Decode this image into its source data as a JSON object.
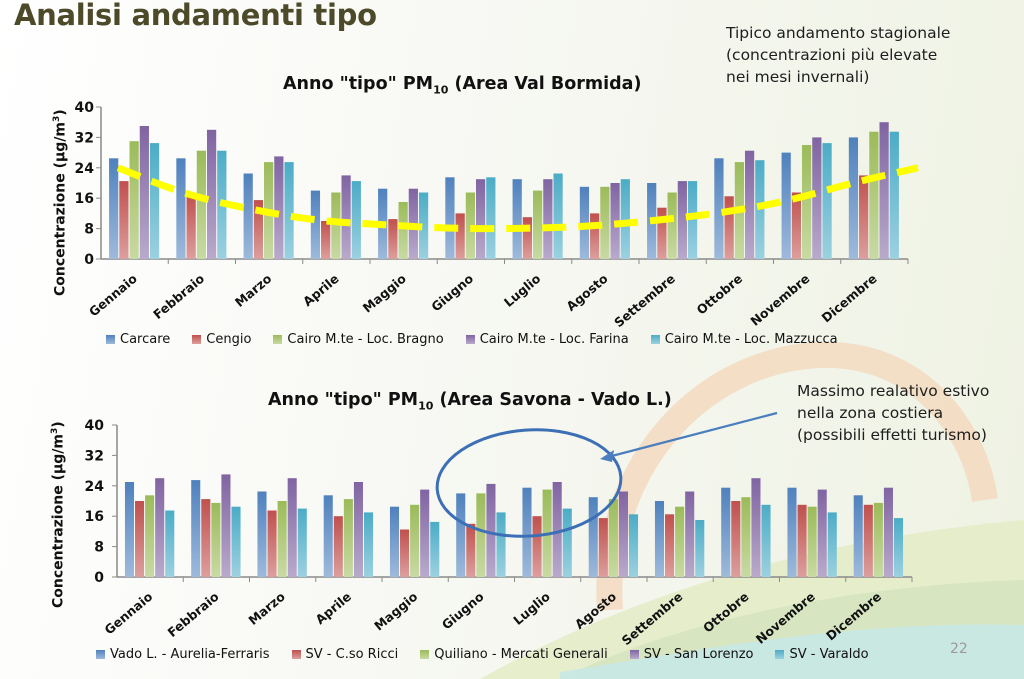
{
  "slide": {
    "title": "Analisi andamenti tipo",
    "page_number": "22",
    "note_top": [
      "Tipico andamento stagionale",
      "(concentrazioni più elevate",
      "nei mesi invernali)"
    ],
    "note_bottom": [
      "Massimo realativo estivo",
      "nella zona costiera",
      "(possibili effetti turismo)"
    ]
  },
  "chart_data": [
    {
      "type": "bar",
      "title_main": "Anno \"tipo\"  PM",
      "title_sub": "10",
      "title_tail": "  (Area Val Bormida)",
      "ylabel_main": "Concentrazione (µg/m",
      "ylabel_sup": "3",
      "ylabel_tail": ")",
      "ylim": [
        0,
        40
      ],
      "yticks": [
        0,
        8,
        16,
        24,
        32,
        40
      ],
      "grid": false,
      "legend_position": "bottom",
      "categories": [
        "Gennaio",
        "Febbraio",
        "Marzo",
        "Aprile",
        "Maggio",
        "Giugno",
        "Luglio",
        "Agosto",
        "Settembre",
        "Ottobre",
        "Novembre",
        "Dicembre"
      ],
      "series": [
        {
          "name": "Carcare",
          "color": "#4f81bd",
          "values": [
            26.5,
            26.5,
            22.5,
            18,
            18.5,
            21.5,
            21,
            19,
            20,
            26.5,
            28,
            32
          ]
        },
        {
          "name": "Cengio",
          "color": "#c0504d",
          "values": [
            20.5,
            17,
            15.5,
            10,
            10.5,
            12,
            11,
            12,
            13.5,
            16.5,
            17.5,
            22
          ]
        },
        {
          "name": "Cairo M.te - Loc. Bragno",
          "color": "#9bbb59",
          "values": [
            31,
            28.5,
            25.5,
            17.5,
            15,
            17.5,
            18,
            19,
            17.5,
            25.5,
            30,
            33.5
          ]
        },
        {
          "name": "Cairo M.te - Loc. Farina",
          "color": "#8064a2",
          "values": [
            35,
            34,
            27,
            22,
            18.5,
            21,
            21,
            20,
            20.5,
            28.5,
            32,
            36
          ]
        },
        {
          "name": "Cairo M.te - Loc. Mazzucca",
          "color": "#4bacc6",
          "values": [
            30.5,
            28.5,
            25.5,
            20.5,
            17.5,
            21.5,
            22.5,
            21,
            20.5,
            26,
            30.5,
            33.5
          ]
        }
      ],
      "annotations": [
        {
          "type": "trend-line",
          "style": "yellow-dashed",
          "description": "seasonal U-shaped trend",
          "approx_values": [
            24,
            17,
            13,
            10,
            9,
            8,
            8,
            8.5,
            10,
            12,
            15,
            20,
            24
          ]
        }
      ]
    },
    {
      "type": "bar",
      "title_main": "Anno \"tipo\"  PM",
      "title_sub": "10",
      "title_tail": "  (Area Savona - Vado L.)",
      "ylabel_main": "Concentrazione (µg/m",
      "ylabel_sup": "3",
      "ylabel_tail": ")",
      "ylim": [
        0,
        40
      ],
      "yticks": [
        0,
        8,
        16,
        24,
        32,
        40
      ],
      "grid": false,
      "legend_position": "bottom",
      "categories": [
        "Gennaio",
        "Febbraio",
        "Marzo",
        "Aprile",
        "Maggio",
        "Giugno",
        "Luglio",
        "Agosto",
        "Settembre",
        "Ottobre",
        "Novembre",
        "Dicembre"
      ],
      "series": [
        {
          "name": "Vado L. - Aurelia-Ferraris",
          "color": "#4f81bd",
          "values": [
            25,
            25.5,
            22.5,
            21.5,
            18.5,
            22,
            23.5,
            21,
            20,
            23.5,
            23.5,
            21.5
          ]
        },
        {
          "name": "SV - C.so Ricci",
          "color": "#c0504d",
          "values": [
            20,
            20.5,
            17.5,
            16,
            12.5,
            14,
            16,
            15.5,
            16.5,
            20,
            19,
            19
          ]
        },
        {
          "name": "Quiliano - Mercati Generali",
          "color": "#9bbb59",
          "values": [
            21.5,
            19.5,
            20,
            20.5,
            19,
            22,
            23,
            20.5,
            18.5,
            21,
            18.5,
            19.5
          ]
        },
        {
          "name": "SV - San Lorenzo",
          "color": "#8064a2",
          "values": [
            26,
            27,
            26,
            25,
            23,
            24.5,
            25,
            22.5,
            22.5,
            26,
            23,
            23.5
          ]
        },
        {
          "name": "SV - Varaldo",
          "color": "#4bacc6",
          "values": [
            17.5,
            18.5,
            18,
            17,
            14.5,
            17,
            18,
            16.5,
            15,
            19,
            17,
            15.5
          ]
        }
      ],
      "annotations": [
        {
          "type": "ellipse-highlight",
          "covers": [
            "Giugno",
            "Luglio"
          ],
          "color": "#3c6fb6"
        },
        {
          "type": "arrow",
          "from": "note_bottom",
          "to": "ellipse-highlight",
          "color": "#4a7ebf"
        }
      ]
    }
  ]
}
